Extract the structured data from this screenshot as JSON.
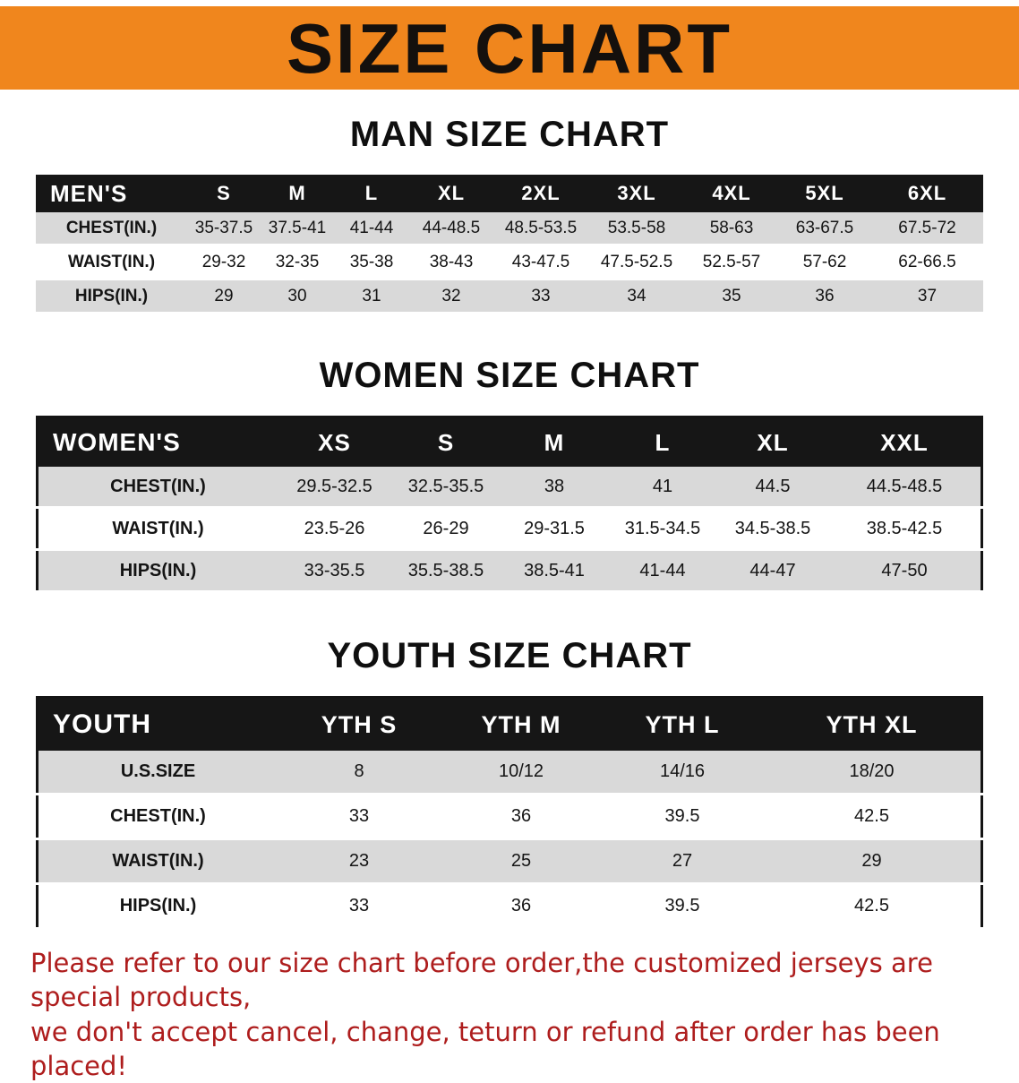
{
  "banner": {
    "title": "SIZE CHART"
  },
  "colors": {
    "banner_bg": "#F0861D",
    "banner_text": "#14100d",
    "table_header_bg": "#161616",
    "row_shade": "#D9D9D9",
    "footer_text": "#AE1D1D"
  },
  "sections": [
    {
      "heading": "MAN SIZE CHART",
      "table": {
        "header": [
          "MEN'S",
          "S",
          "M",
          "L",
          "XL",
          "2XL",
          "3XL",
          "4XL",
          "5XL",
          "6XL"
        ],
        "rows": [
          [
            "CHEST(IN.)",
            "35-37.5",
            "37.5-41",
            "41-44",
            "44-48.5",
            "48.5-53.5",
            "53.5-58",
            "58-63",
            "63-67.5",
            "67.5-72"
          ],
          [
            "WAIST(IN.)",
            "29-32",
            "32-35",
            "35-38",
            "38-43",
            "43-47.5",
            "47.5-52.5",
            "52.5-57",
            "57-62",
            "62-66.5"
          ],
          [
            "HIPS(IN.)",
            "29",
            "30",
            "31",
            "32",
            "33",
            "34",
            "35",
            "36",
            "37"
          ]
        ]
      }
    },
    {
      "heading": "WOMEN SIZE CHART",
      "table": {
        "header": [
          "WOMEN'S",
          "XS",
          "S",
          "M",
          "L",
          "XL",
          "XXL"
        ],
        "rows": [
          [
            "CHEST(IN.)",
            "29.5-32.5",
            "32.5-35.5",
            "38",
            "41",
            "44.5",
            "44.5-48.5"
          ],
          [
            "WAIST(IN.)",
            "23.5-26",
            "26-29",
            "29-31.5",
            "31.5-34.5",
            "34.5-38.5",
            "38.5-42.5"
          ],
          [
            "HIPS(IN.)",
            "33-35.5",
            "35.5-38.5",
            "38.5-41",
            "41-44",
            "44-47",
            "47-50"
          ]
        ]
      }
    },
    {
      "heading": "YOUTH SIZE CHART",
      "table": {
        "header": [
          "YOUTH",
          "YTH S",
          "YTH M",
          "YTH L",
          "YTH XL"
        ],
        "rows": [
          [
            "U.S.SIZE",
            "8",
            "10/12",
            "14/16",
            "18/20"
          ],
          [
            "CHEST(IN.)",
            "33",
            "36",
            "39.5",
            "42.5"
          ],
          [
            "WAIST(IN.)",
            "23",
            "25",
            "27",
            "29"
          ],
          [
            "HIPS(IN.)",
            "33",
            "36",
            "39.5",
            "42.5"
          ]
        ]
      }
    }
  ],
  "footer": {
    "line1": "Please refer to our size chart before order,the customized jerseys are special products,",
    "line2": "we don't accept cancel, change, teturn or refund after order has been placed!"
  }
}
